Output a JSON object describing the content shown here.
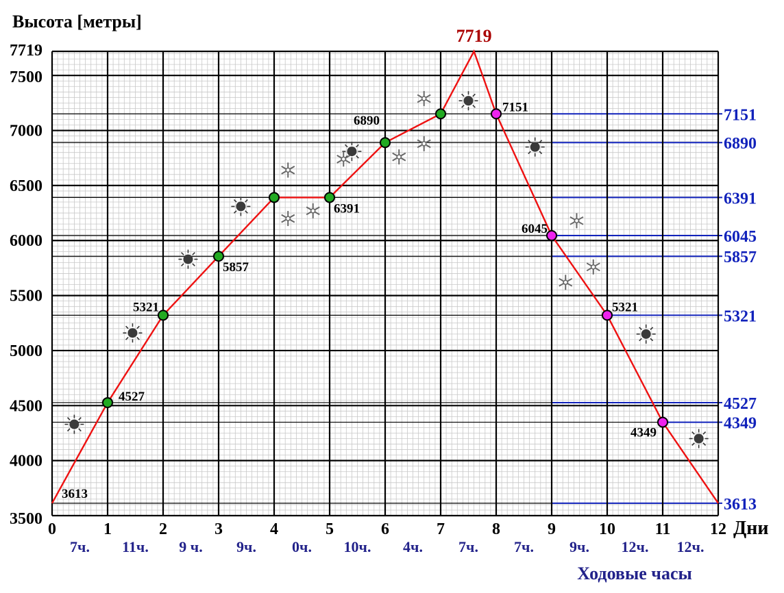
{
  "chart_data": {
    "type": "line",
    "ylabel": "Высота [метры]",
    "xunit": "Дни",
    "hours_caption": "Ходовые часы",
    "x": [
      0,
      1,
      2,
      3,
      4,
      5,
      6,
      7,
      7.6,
      8,
      9,
      10,
      11,
      12
    ],
    "y": [
      3613,
      4527,
      5321,
      5857,
      6391,
      6391,
      6890,
      7151,
      7719,
      7151,
      6045,
      5321,
      4349,
      3613
    ],
    "xlim": [
      0,
      12
    ],
    "ylim": [
      3500,
      7719
    ],
    "xticks": [
      "0",
      "1",
      "2",
      "3",
      "4",
      "5",
      "6",
      "7",
      "8",
      "9",
      "10",
      "11",
      "12"
    ],
    "yticks": [
      "3500",
      "4000",
      "4500",
      "5000",
      "5500",
      "6000",
      "6500",
      "7000",
      "7500",
      "7719"
    ],
    "hours": [
      "7ч.",
      "11ч.",
      "9 ч.",
      "9ч.",
      "0ч.",
      "10ч.",
      "4ч.",
      "7ч.",
      "7ч.",
      "9ч.",
      "12ч.",
      "12ч."
    ],
    "summit": {
      "x": 7.6,
      "y": 7719,
      "label": "7719"
    },
    "ascent_markers": [
      {
        "x": 1,
        "y": 4527,
        "label": "4527"
      },
      {
        "x": 2,
        "y": 5321,
        "label": "5321"
      },
      {
        "x": 3,
        "y": 5857,
        "label": "5857"
      },
      {
        "x": 4,
        "y": 6391,
        "label": ""
      },
      {
        "x": 5,
        "y": 6391,
        "label": "6391"
      },
      {
        "x": 6,
        "y": 6890,
        "label": "6890"
      },
      {
        "x": 7,
        "y": 7151,
        "label": ""
      }
    ],
    "descent_markers": [
      {
        "x": 8,
        "y": 7151,
        "label": "7151"
      },
      {
        "x": 9,
        "y": 6045,
        "label": "6045"
      },
      {
        "x": 10,
        "y": 5321,
        "label": "5321"
      },
      {
        "x": 11,
        "y": 4349,
        "label": "4349"
      }
    ],
    "start_label": "3613",
    "right_levels": [
      {
        "value": 7151,
        "label": "7151",
        "from_x": 9
      },
      {
        "value": 6890,
        "label": "6890",
        "from_x": 9
      },
      {
        "value": 6391,
        "label": "6391",
        "from_x": 9
      },
      {
        "value": 6045,
        "label": "6045",
        "from_x": 9
      },
      {
        "value": 5857,
        "label": "5857",
        "from_x": 9
      },
      {
        "value": 5321,
        "label": "5321",
        "from_x": 10
      },
      {
        "value": 4527,
        "label": "4527",
        "from_x": 9
      },
      {
        "value": 4349,
        "label": "4349",
        "from_x": 11
      },
      {
        "value": 3613,
        "label": "3613",
        "from_x": 9
      }
    ],
    "weather_icons": [
      {
        "type": "sun",
        "x": 0.4,
        "y": 4330
      },
      {
        "type": "sun",
        "x": 1.45,
        "y": 5160
      },
      {
        "type": "sun",
        "x": 2.45,
        "y": 5830
      },
      {
        "type": "sun",
        "x": 3.4,
        "y": 6310
      },
      {
        "type": "snow",
        "x": 4.25,
        "y": 6640
      },
      {
        "type": "snow",
        "x": 4.25,
        "y": 6200
      },
      {
        "type": "snow",
        "x": 4.7,
        "y": 6270
      },
      {
        "type": "sun",
        "x": 5.4,
        "y": 6810
      },
      {
        "type": "snow",
        "x": 5.25,
        "y": 6740
      },
      {
        "type": "snow",
        "x": 6.25,
        "y": 6760
      },
      {
        "type": "snow",
        "x": 6.7,
        "y": 6880
      },
      {
        "type": "snow",
        "x": 6.7,
        "y": 7290
      },
      {
        "type": "sun",
        "x": 7.5,
        "y": 7270
      },
      {
        "type": "sun",
        "x": 8.7,
        "y": 6850
      },
      {
        "type": "snow",
        "x": 9.45,
        "y": 6180
      },
      {
        "type": "snow",
        "x": 9.75,
        "y": 5760
      },
      {
        "type": "snow",
        "x": 9.25,
        "y": 5620
      },
      {
        "type": "sun",
        "x": 10.7,
        "y": 5150
      },
      {
        "type": "sun",
        "x": 11.65,
        "y": 4200
      }
    ],
    "colors": {
      "line": "#ee1111",
      "summit_label": "#aa0000",
      "ascent_marker": "#22aa22",
      "descent_marker": "#ee22ee",
      "right_axis": "#1122bb",
      "hours_text": "#22228a",
      "text": "#000000",
      "minor_grid": "#c8c8c8",
      "major_grid": "#000000"
    }
  }
}
